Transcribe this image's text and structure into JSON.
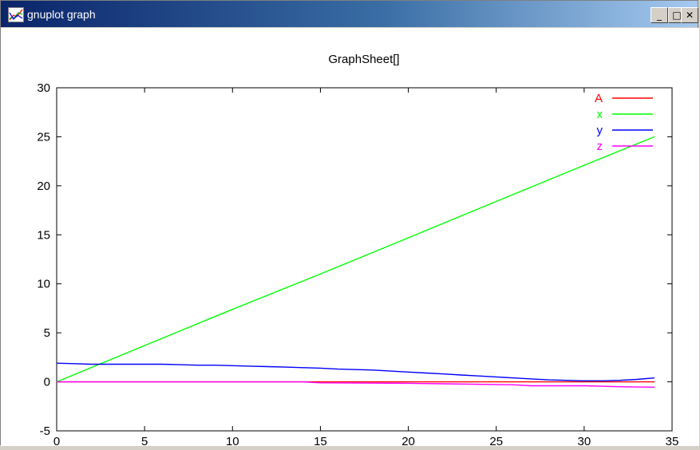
{
  "window": {
    "title": "gnuplot graph",
    "icon": "gnuplot-graph-icon",
    "controls": {
      "minimize": "_",
      "maximize": "□",
      "close": "✕"
    }
  },
  "chart_data": {
    "type": "line",
    "title": "GraphSheet[]",
    "xlabel": "",
    "ylabel": "",
    "xlim": [
      0,
      35
    ],
    "ylim": [
      -5,
      30
    ],
    "xticks": [
      0,
      5,
      10,
      15,
      20,
      25,
      30,
      35
    ],
    "yticks": [
      -5,
      0,
      5,
      10,
      15,
      20,
      25,
      30
    ],
    "grid": false,
    "legend_position": "top-right",
    "series": [
      {
        "name": "A",
        "color": "#ff0000",
        "x": [
          0,
          34
        ],
        "y": [
          0,
          0
        ]
      },
      {
        "name": "x",
        "color": "#00ff00",
        "x": [
          0,
          5,
          10,
          15,
          20,
          25,
          30,
          34
        ],
        "y": [
          0,
          3.7,
          7.4,
          11.0,
          14.7,
          18.4,
          22.1,
          25.0
        ]
      },
      {
        "name": "y",
        "color": "#0000ff",
        "x": [
          0,
          1,
          2,
          3,
          4,
          5,
          6,
          7,
          8,
          9,
          10,
          11,
          12,
          13,
          14,
          15,
          16,
          17,
          18,
          19,
          20,
          21,
          22,
          23,
          24,
          25,
          26,
          27,
          28,
          29,
          30,
          31,
          32,
          33,
          34
        ],
        "y": [
          1.9,
          1.85,
          1.8,
          1.8,
          1.8,
          1.8,
          1.8,
          1.75,
          1.7,
          1.7,
          1.65,
          1.6,
          1.55,
          1.5,
          1.45,
          1.4,
          1.3,
          1.25,
          1.2,
          1.1,
          1.0,
          0.9,
          0.8,
          0.7,
          0.6,
          0.5,
          0.4,
          0.3,
          0.2,
          0.15,
          0.1,
          0.1,
          0.15,
          0.25,
          0.4
        ]
      },
      {
        "name": "z",
        "color": "#ff00ff",
        "x": [
          0,
          5,
          10,
          14,
          15,
          20,
          22,
          26,
          27,
          30,
          31,
          32,
          34
        ],
        "y": [
          0,
          0,
          0,
          0,
          -0.1,
          -0.15,
          -0.2,
          -0.3,
          -0.4,
          -0.4,
          -0.45,
          -0.5,
          -0.55
        ]
      }
    ]
  }
}
